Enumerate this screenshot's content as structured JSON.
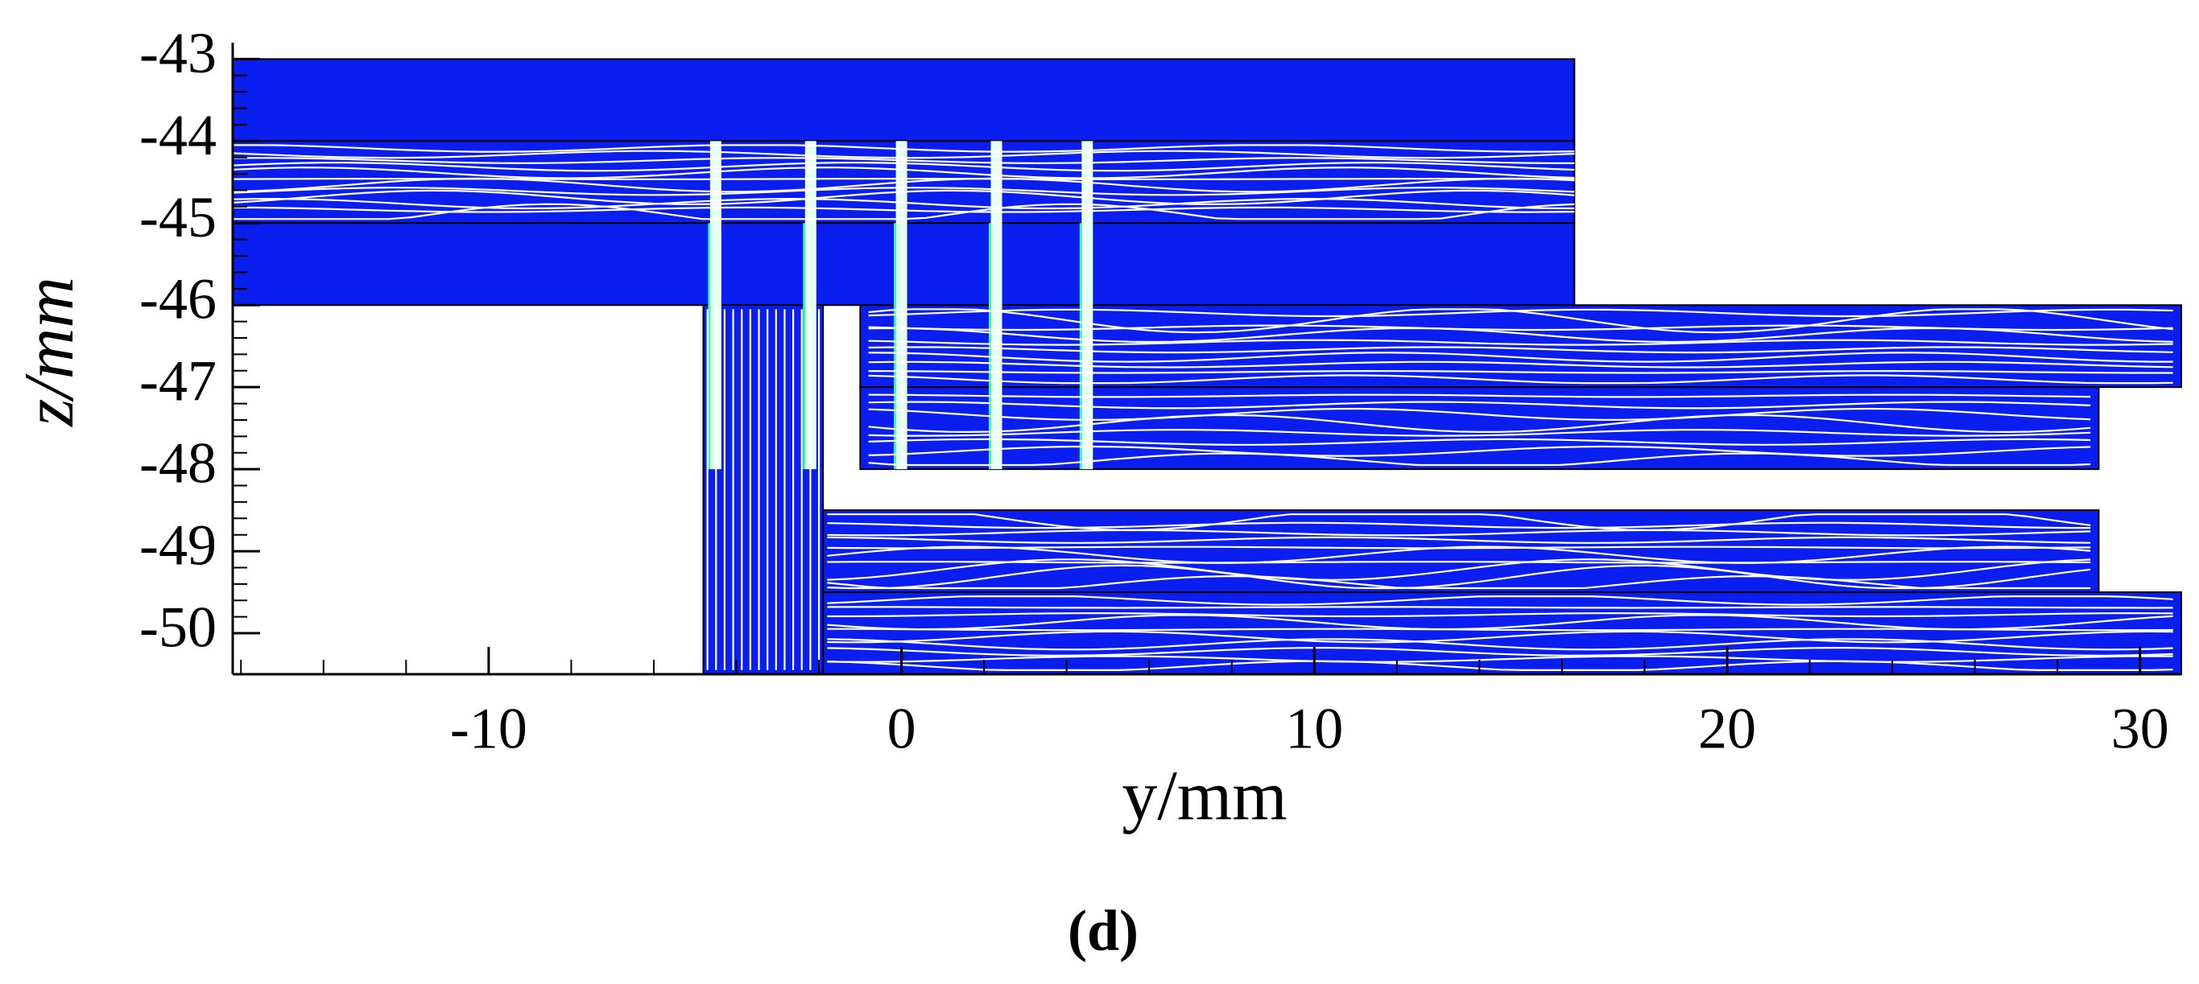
{
  "chart_data": {
    "type": "streamline",
    "xlabel": "y/mm",
    "ylabel": "z/mm",
    "caption": "(d)",
    "xlim": [
      -16.2,
      31
    ],
    "xticks": [
      -10,
      0,
      10,
      20,
      30
    ],
    "ylim": [
      -42.8,
      -50.5
    ],
    "yticks": [
      -43,
      -44,
      -45,
      -46,
      -47,
      -48,
      -49,
      -50
    ],
    "color": "#0a1ef0"
  }
}
